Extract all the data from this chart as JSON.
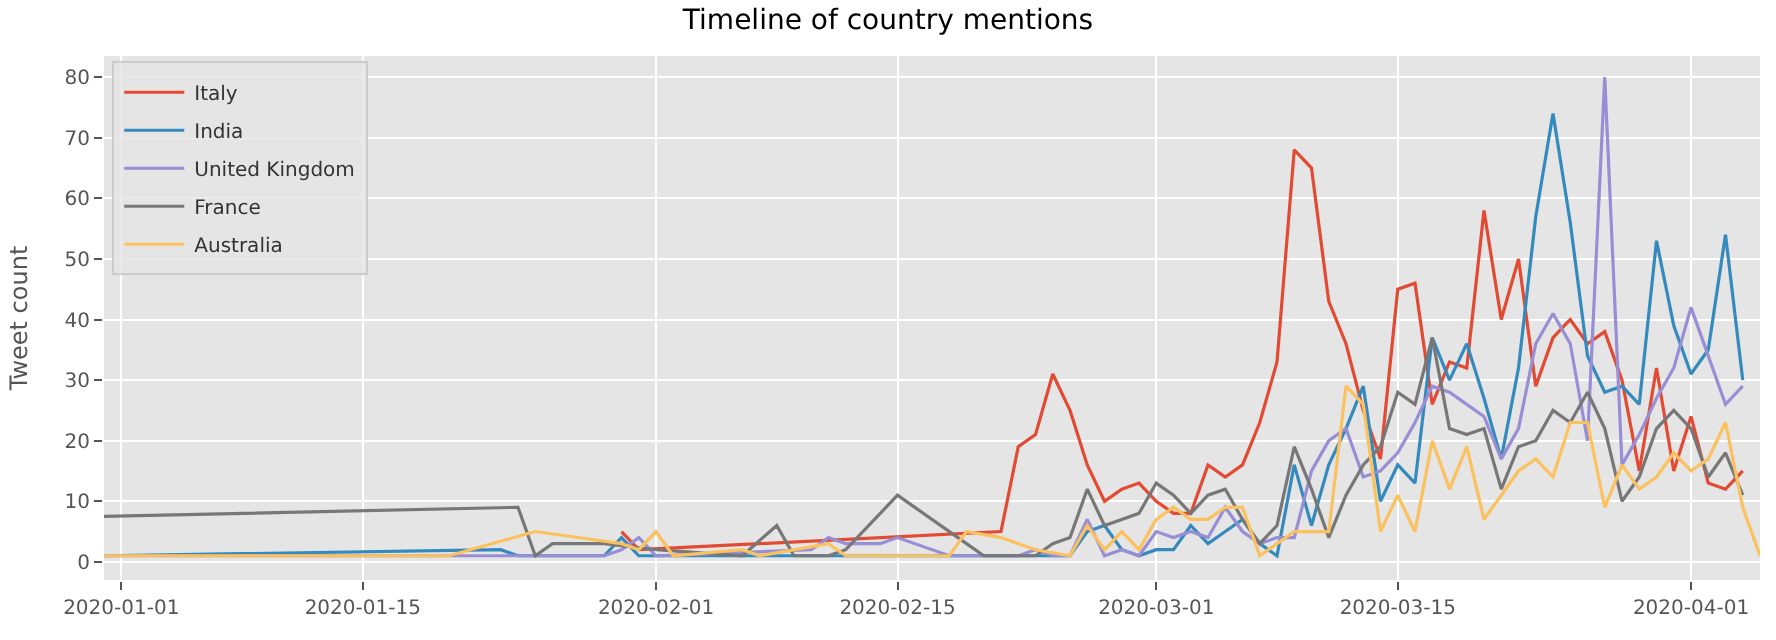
{
  "chart_data": {
    "type": "line",
    "title": "Timeline of country mentions",
    "ylabel": "Tweet count",
    "xlim": [
      "2019-12-31",
      "2020-04-05"
    ],
    "xticks": [
      "2020-01-01",
      "2020-01-15",
      "2020-02-01",
      "2020-02-15",
      "2020-03-01",
      "2020-03-15",
      "2020-04-01"
    ],
    "ylim": [
      -3,
      83.5
    ],
    "yticks": [
      0,
      10,
      20,
      30,
      40,
      50,
      60,
      70,
      80
    ],
    "grid": true,
    "legend": "top left",
    "series": [
      {
        "name": "Italy",
        "color": "#e24a33",
        "x": [
          "2020-01-30",
          "2020-01-31",
          "2020-02-21",
          "2020-02-22",
          "2020-02-23",
          "2020-02-24",
          "2020-02-25",
          "2020-02-26",
          "2020-02-27",
          "2020-02-28",
          "2020-02-29",
          "2020-03-01",
          "2020-03-02",
          "2020-03-03",
          "2020-03-04",
          "2020-03-05",
          "2020-03-06",
          "2020-03-07",
          "2020-03-08",
          "2020-03-09",
          "2020-03-10",
          "2020-03-11",
          "2020-03-12",
          "2020-03-13",
          "2020-03-14",
          "2020-03-15",
          "2020-03-16",
          "2020-03-17",
          "2020-03-18",
          "2020-03-19",
          "2020-03-20",
          "2020-03-21",
          "2020-03-22",
          "2020-03-23",
          "2020-03-24",
          "2020-03-25",
          "2020-03-26",
          "2020-03-27",
          "2020-03-28",
          "2020-03-29",
          "2020-03-30",
          "2020-03-31",
          "2020-04-01",
          "2020-04-02",
          "2020-04-03",
          "2020-04-04"
        ],
        "values": [
          5,
          2,
          5,
          19,
          21,
          31,
          25,
          16,
          10,
          12,
          13,
          10,
          8,
          8,
          16,
          14,
          16,
          23,
          33,
          68,
          65,
          43,
          36,
          25,
          17,
          45,
          46,
          26,
          33,
          32,
          58,
          40,
          50,
          29,
          37,
          40,
          36,
          38,
          30,
          15,
          32,
          15,
          24,
          13,
          12,
          15
        ]
      },
      {
        "name": "India",
        "color": "#348abd",
        "x": [
          "2019-12-31",
          "2020-01-23",
          "2020-01-24",
          "2020-01-29",
          "2020-01-30",
          "2020-01-31",
          "2020-02-25",
          "2020-02-26",
          "2020-02-27",
          "2020-02-28",
          "2020-02-29",
          "2020-03-01",
          "2020-03-02",
          "2020-03-03",
          "2020-03-04",
          "2020-03-05",
          "2020-03-06",
          "2020-03-07",
          "2020-03-08",
          "2020-03-09",
          "2020-03-10",
          "2020-03-11",
          "2020-03-12",
          "2020-03-13",
          "2020-03-14",
          "2020-03-15",
          "2020-03-16",
          "2020-03-17",
          "2020-03-18",
          "2020-03-19",
          "2020-03-20",
          "2020-03-21",
          "2020-03-22",
          "2020-03-23",
          "2020-03-24",
          "2020-03-25",
          "2020-03-26",
          "2020-03-27",
          "2020-03-28",
          "2020-03-29",
          "2020-03-30",
          "2020-03-31",
          "2020-04-01",
          "2020-04-02",
          "2020-04-03",
          "2020-04-04"
        ],
        "values": [
          1,
          2,
          1,
          1,
          4,
          1,
          1,
          5,
          6,
          2,
          1,
          2,
          2,
          6,
          3,
          5,
          7,
          3,
          1,
          16,
          6,
          16,
          22,
          29,
          10,
          16,
          13,
          37,
          30,
          36,
          27,
          17,
          32,
          57,
          74,
          56,
          34,
          28,
          29,
          26,
          53,
          39,
          31,
          35,
          54,
          30
        ]
      },
      {
        "name": "United Kingdom",
        "color": "#988ed5",
        "x": [
          "2019-12-31",
          "2020-01-29",
          "2020-01-30",
          "2020-01-31",
          "2020-02-01",
          "2020-02-10",
          "2020-02-11",
          "2020-02-12",
          "2020-02-14",
          "2020-02-15",
          "2020-02-18",
          "2020-02-22",
          "2020-02-23",
          "2020-02-24",
          "2020-02-25",
          "2020-02-26",
          "2020-02-27",
          "2020-02-28",
          "2020-02-29",
          "2020-03-01",
          "2020-03-02",
          "2020-03-03",
          "2020-03-04",
          "2020-03-05",
          "2020-03-06",
          "2020-03-07",
          "2020-03-08",
          "2020-03-09",
          "2020-03-10",
          "2020-03-11",
          "2020-03-12",
          "2020-03-13",
          "2020-03-14",
          "2020-03-15",
          "2020-03-16",
          "2020-03-17",
          "2020-03-18",
          "2020-03-19",
          "2020-03-20",
          "2020-03-21",
          "2020-03-22",
          "2020-03-23",
          "2020-03-24",
          "2020-03-25",
          "2020-03-26",
          "2020-03-27",
          "2020-03-28",
          "2020-03-29",
          "2020-03-30",
          "2020-03-31",
          "2020-04-01",
          "2020-04-02",
          "2020-04-03",
          "2020-04-04"
        ],
        "values": [
          1,
          1,
          2,
          4,
          1,
          2,
          4,
          3,
          3,
          4,
          1,
          1,
          2,
          1,
          1,
          7,
          1,
          2,
          1,
          5,
          4,
          5,
          4,
          9,
          5,
          3,
          4,
          4,
          15,
          20,
          22,
          14,
          15,
          18,
          23,
          29,
          28,
          26,
          24,
          17,
          22,
          36,
          41,
          36,
          20,
          80,
          16,
          21,
          27,
          32,
          42,
          34,
          26,
          29
        ]
      },
      {
        "name": "France",
        "color": "#777777",
        "x": [
          "2019-12-31",
          "2020-01-24",
          "2020-01-25",
          "2020-01-26",
          "2020-01-29",
          "2020-02-01",
          "2020-02-06",
          "2020-02-08",
          "2020-02-09",
          "2020-02-11",
          "2020-02-12",
          "2020-02-15",
          "2020-02-19",
          "2020-02-20",
          "2020-02-23",
          "2020-02-24",
          "2020-02-25",
          "2020-02-26",
          "2020-02-27",
          "2020-02-28",
          "2020-02-29",
          "2020-03-01",
          "2020-03-02",
          "2020-03-03",
          "2020-03-04",
          "2020-03-05",
          "2020-03-06",
          "2020-03-07",
          "2020-03-08",
          "2020-03-09",
          "2020-03-10",
          "2020-03-11",
          "2020-03-12",
          "2020-03-13",
          "2020-03-14",
          "2020-03-15",
          "2020-03-16",
          "2020-03-17",
          "2020-03-18",
          "2020-03-19",
          "2020-03-20",
          "2020-03-21",
          "2020-03-22",
          "2020-03-23",
          "2020-03-24",
          "2020-03-25",
          "2020-03-26",
          "2020-03-27",
          "2020-03-28",
          "2020-03-29",
          "2020-03-30",
          "2020-03-31",
          "2020-04-01",
          "2020-04-02",
          "2020-04-03",
          "2020-04-04"
        ],
        "values": [
          7.5,
          9,
          1,
          3,
          3,
          2,
          1,
          6,
          1,
          1,
          2,
          11,
          3,
          1,
          1,
          3,
          4,
          12,
          6,
          7,
          8,
          13,
          11,
          8,
          11,
          12,
          7,
          3,
          6,
          19,
          12,
          4,
          11,
          16,
          19,
          28,
          26,
          37,
          22,
          21,
          22,
          12,
          19,
          20,
          25,
          23,
          28,
          22,
          10,
          14,
          22,
          25,
          22,
          14,
          18,
          11
        ]
      },
      {
        "name": "Australia",
        "color": "#fbc15e",
        "x": [
          "2019-12-31",
          "2020-01-20",
          "2020-01-25",
          "2020-01-30",
          "2020-01-31",
          "2020-02-01",
          "2020-02-02",
          "2020-02-06",
          "2020-02-07",
          "2020-02-11",
          "2020-02-12",
          "2020-02-15",
          "2020-02-18",
          "2020-02-19",
          "2020-02-21",
          "2020-02-22",
          "2020-02-23",
          "2020-02-25",
          "2020-02-26",
          "2020-02-27",
          "2020-02-28",
          "2020-02-29",
          "2020-03-01",
          "2020-03-02",
          "2020-03-03",
          "2020-03-04",
          "2020-03-05",
          "2020-03-06",
          "2020-03-07",
          "2020-03-08",
          "2020-03-09",
          "2020-03-10",
          "2020-03-11",
          "2020-03-12",
          "2020-03-13",
          "2020-03-14",
          "2020-03-15",
          "2020-03-16",
          "2020-03-17",
          "2020-03-18",
          "2020-03-19",
          "2020-03-20",
          "2020-03-21",
          "2020-03-22",
          "2020-03-23",
          "2020-03-24",
          "2020-03-25",
          "2020-03-26",
          "2020-03-27",
          "2020-03-28",
          "2020-03-29",
          "2020-03-30",
          "2020-03-31",
          "2020-04-01",
          "2020-04-02",
          "2020-04-03",
          "2020-04-04",
          "2020-04-05"
        ],
        "values": [
          1,
          1,
          5,
          3,
          2,
          5,
          1,
          2,
          1,
          3,
          1,
          1,
          1,
          5,
          4,
          3,
          2,
          1,
          6,
          2,
          5,
          2,
          7,
          9,
          7,
          7,
          9,
          9,
          1,
          3,
          5,
          5,
          5,
          29,
          26,
          5,
          11,
          5,
          20,
          12,
          19,
          7,
          11,
          15,
          17,
          14,
          23,
          23,
          9,
          16,
          12,
          14,
          18,
          15,
          17,
          23,
          9,
          1
        ]
      }
    ]
  }
}
